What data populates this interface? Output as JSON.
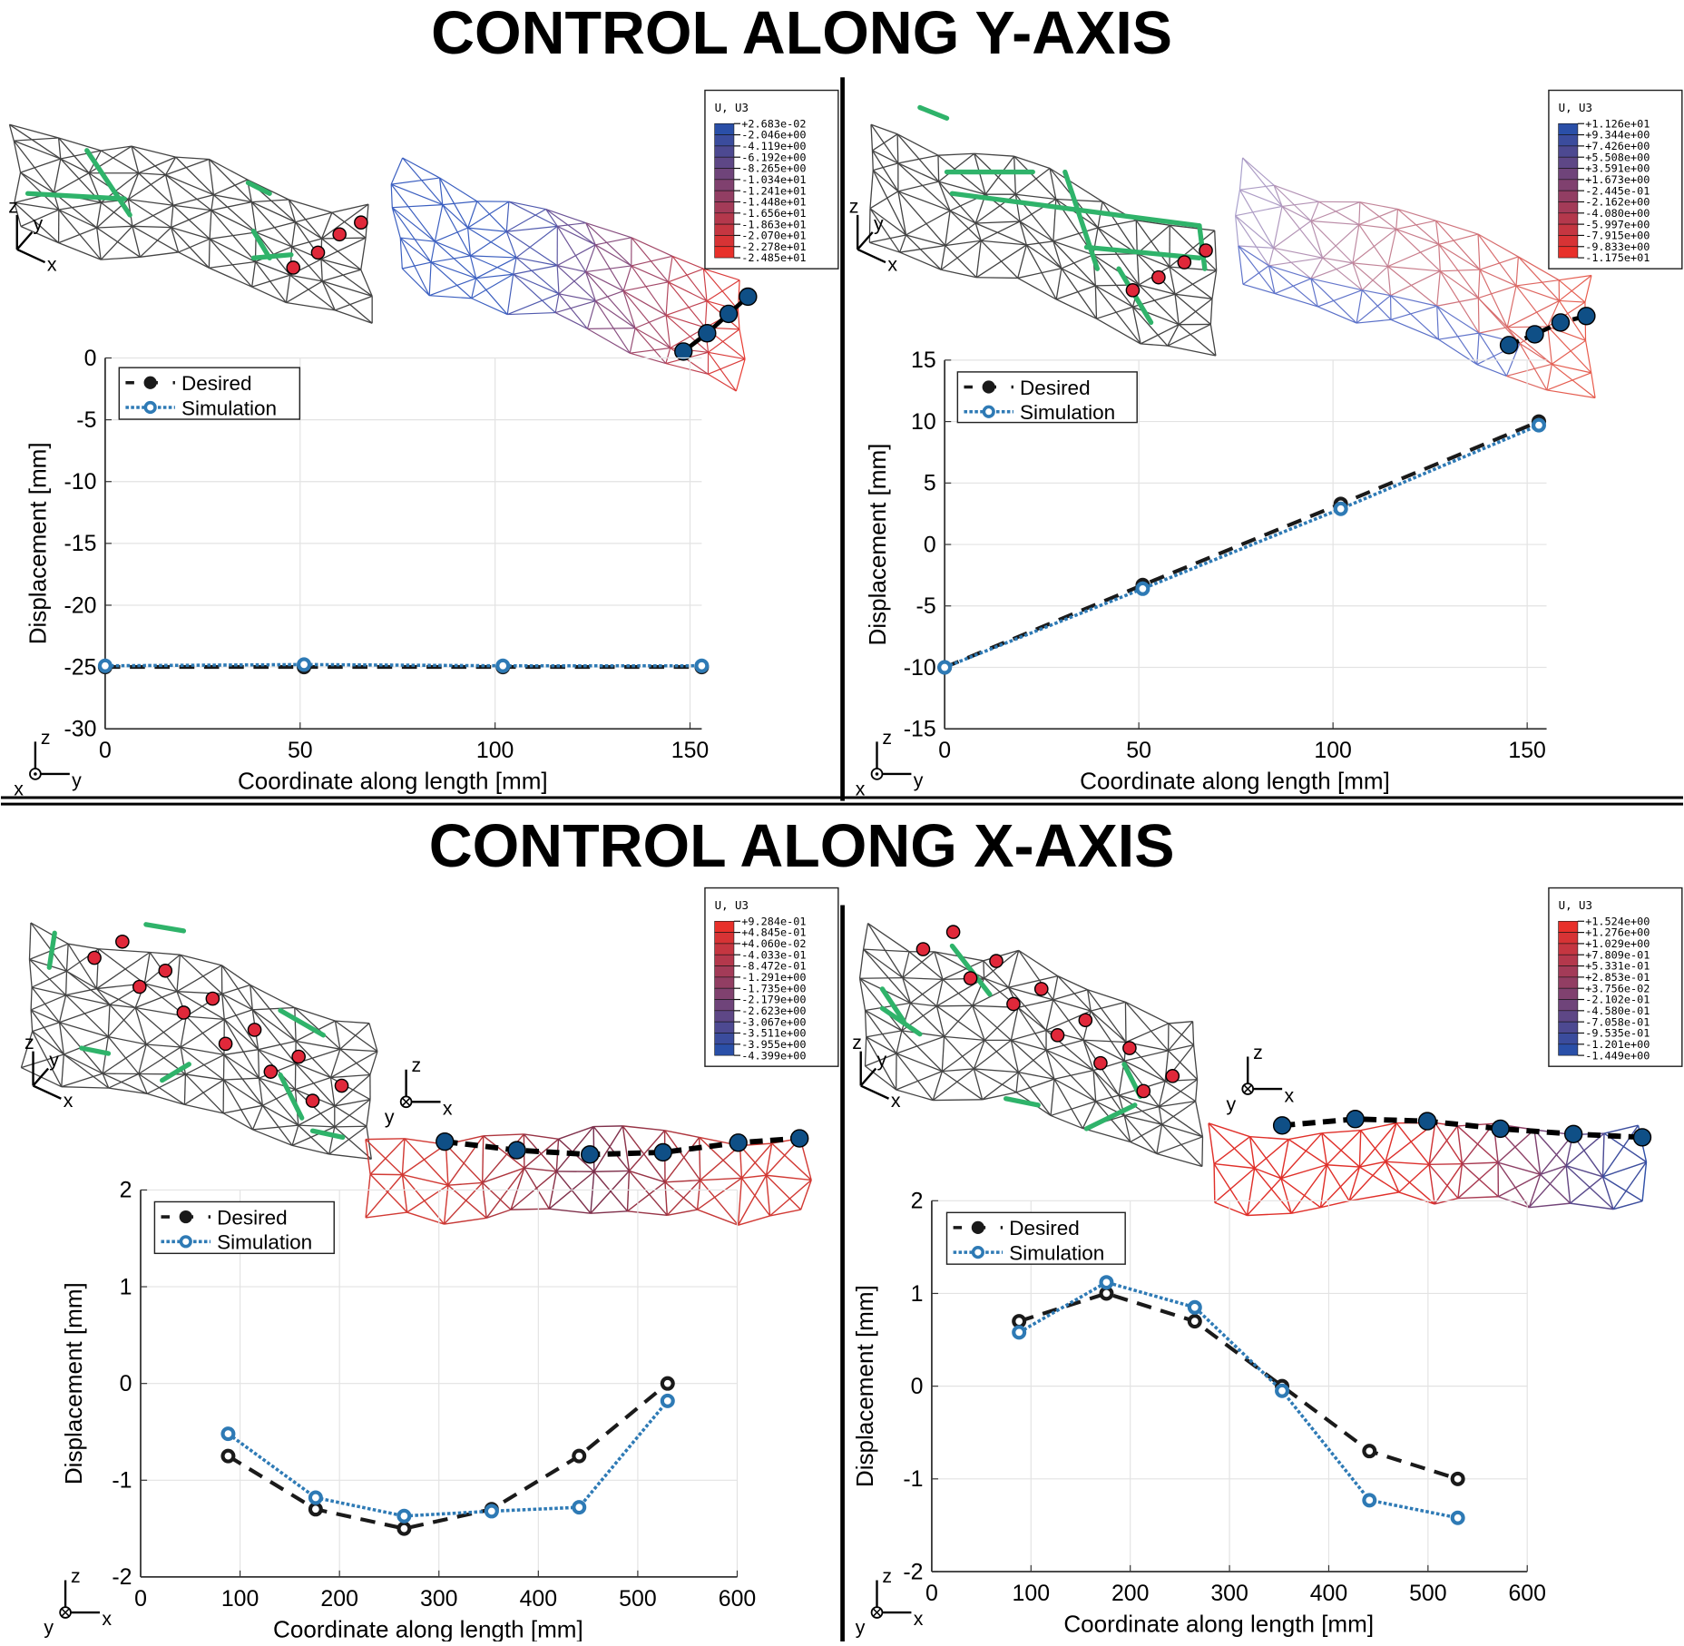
{
  "sections": [
    {
      "title": "CONTROL ALONG Y-AXIS"
    },
    {
      "title": "CONTROL ALONG X-AXIS"
    }
  ],
  "triad_labels": {
    "x": "x",
    "y": "y",
    "z": "z"
  },
  "colorbars": [
    {
      "title": "U, U3",
      "top_color": "#2a4fa8",
      "bottom_color": "#e8302a",
      "labels": [
        "+2.683e-02",
        "-2.046e+00",
        "-4.119e+00",
        "-6.192e+00",
        "-8.265e+00",
        "-1.034e+01",
        "-1.241e+01",
        "-1.448e+01",
        "-1.656e+01",
        "-1.863e+01",
        "-2.070e+01",
        "-2.278e+01",
        "-2.485e+01"
      ]
    },
    {
      "title": "U, U3",
      "top_color": "#2a4fa8",
      "bottom_color": "#e8302a",
      "labels": [
        "+1.126e+01",
        "+9.344e+00",
        "+7.426e+00",
        "+5.508e+00",
        "+3.591e+00",
        "+1.673e+00",
        "-2.445e-01",
        "-2.162e+00",
        "-4.080e+00",
        "-5.997e+00",
        "-7.915e+00",
        "-9.833e+00",
        "-1.175e+01"
      ]
    },
    {
      "title": "U, U3",
      "top_color": "#e8302a",
      "bottom_color": "#2a4fa8",
      "labels": [
        "+9.284e-01",
        "+4.845e-01",
        "+4.060e-02",
        "-4.033e-01",
        "-8.472e-01",
        "-1.291e+00",
        "-1.735e+00",
        "-2.179e+00",
        "-2.623e+00",
        "-3.067e+00",
        "-3.511e+00",
        "-3.955e+00",
        "-4.399e+00"
      ]
    },
    {
      "title": "U, U3",
      "top_color": "#e8302a",
      "bottom_color": "#2a4fa8",
      "labels": [
        "+1.524e+00",
        "+1.276e+00",
        "+1.029e+00",
        "+7.809e-01",
        "+5.331e-01",
        "+2.853e-01",
        "+3.756e-02",
        "-2.102e-01",
        "-4.580e-01",
        "-7.058e-01",
        "-9.535e-01",
        "-1.201e+00",
        "-1.449e+00"
      ]
    }
  ],
  "colors": {
    "desired": "#1a1a1a",
    "simulation": "#2e7ab5",
    "actuator": "#2fb36a",
    "sensor_red": "#e0283a",
    "target_blue": "#0f4f86"
  },
  "chart_data": [
    {
      "type": "line",
      "xlabel": "Coordinate along length [mm]",
      "ylabel": "Displacement [mm]",
      "xlim": [
        0,
        153
      ],
      "ylim": [
        -30,
        0
      ],
      "xticks": [
        0,
        50,
        100,
        150
      ],
      "yticks": [
        0,
        -5,
        -10,
        -15,
        -20,
        -25,
        -30
      ],
      "grid": true,
      "legend": "top-left",
      "series": [
        {
          "name": "Desired",
          "x": [
            0,
            51,
            102,
            153
          ],
          "y": [
            -25,
            -25,
            -25,
            -25
          ]
        },
        {
          "name": "Simulation",
          "x": [
            0,
            51,
            102,
            153
          ],
          "y": [
            -24.9,
            -24.8,
            -24.9,
            -24.9
          ]
        }
      ]
    },
    {
      "type": "line",
      "xlabel": "Coordinate along length [mm]",
      "ylabel": "Displacement [mm]",
      "xlim": [
        0,
        155
      ],
      "ylim": [
        -15,
        15
      ],
      "xticks": [
        0,
        50,
        100,
        150
      ],
      "yticks": [
        15,
        10,
        5,
        0,
        -5,
        -10,
        -15
      ],
      "grid": true,
      "legend": "top-left",
      "series": [
        {
          "name": "Desired",
          "x": [
            0,
            51,
            102,
            153
          ],
          "y": [
            -10,
            -3.3,
            3.3,
            10
          ]
        },
        {
          "name": "Simulation",
          "x": [
            0,
            51,
            102,
            153
          ],
          "y": [
            -10,
            -3.6,
            2.9,
            9.7
          ]
        }
      ]
    },
    {
      "type": "line",
      "xlabel": "Coordinate along length [mm]",
      "ylabel": "Displacement [mm]",
      "xlim": [
        0,
        600
      ],
      "ylim": [
        -2,
        2
      ],
      "xticks": [
        0,
        100,
        200,
        300,
        400,
        500,
        600
      ],
      "yticks": [
        2,
        1,
        0,
        -1,
        -2
      ],
      "grid": true,
      "legend": "top-left",
      "series": [
        {
          "name": "Desired",
          "x": [
            88,
            176,
            265,
            353,
            441,
            530
          ],
          "y": [
            -0.75,
            -1.3,
            -1.5,
            -1.3,
            -0.75,
            0
          ]
        },
        {
          "name": "Simulation",
          "x": [
            88,
            176,
            265,
            353,
            441,
            530
          ],
          "y": [
            -0.52,
            -1.18,
            -1.37,
            -1.32,
            -1.28,
            -0.18
          ]
        }
      ]
    },
    {
      "type": "line",
      "xlabel": "Coordinate along length [mm]",
      "ylabel": "Displacement [mm]",
      "xlim": [
        0,
        600
      ],
      "ylim": [
        -2,
        2
      ],
      "xticks": [
        0,
        100,
        200,
        300,
        400,
        500,
        600
      ],
      "yticks": [
        2,
        1,
        0,
        -1,
        -2
      ],
      "grid": true,
      "legend": "top-left",
      "series": [
        {
          "name": "Desired",
          "x": [
            88,
            176,
            265,
            353,
            441,
            530
          ],
          "y": [
            0.7,
            1.0,
            0.7,
            0,
            -0.7,
            -1.0
          ]
        },
        {
          "name": "Simulation",
          "x": [
            88,
            176,
            265,
            353,
            441,
            530
          ],
          "y": [
            0.58,
            1.12,
            0.85,
            -0.05,
            -1.23,
            -1.42
          ]
        }
      ]
    }
  ]
}
